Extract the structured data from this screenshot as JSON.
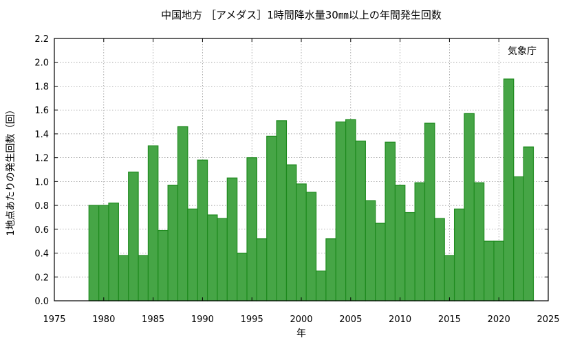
{
  "chart_data": {
    "type": "bar",
    "title": "中国地方 ［アメダス］1時間降水量30㎜以上の年間発生回数",
    "xlabel": "年",
    "ylabel": "1地点あたりの発生回数（回）",
    "annotation": "気象庁",
    "xlim": [
      1975,
      2025
    ],
    "ylim": [
      0,
      2.2
    ],
    "x_ticks": [
      1975,
      1980,
      1985,
      1990,
      1995,
      2000,
      2005,
      2010,
      2015,
      2020,
      2025
    ],
    "y_ticks": [
      "0.0",
      "0.2",
      "0.4",
      "0.6",
      "0.8",
      "1.0",
      "1.2",
      "1.4",
      "1.6",
      "1.8",
      "2.0",
      "2.2"
    ],
    "grid": true,
    "bar_color": "#46a546",
    "bar_edge_color": "#1e8a1e",
    "x": [
      1979,
      1980,
      1981,
      1982,
      1983,
      1984,
      1985,
      1986,
      1987,
      1988,
      1989,
      1990,
      1991,
      1992,
      1993,
      1994,
      1995,
      1996,
      1997,
      1998,
      1999,
      2000,
      2001,
      2002,
      2003,
      2004,
      2005,
      2006,
      2007,
      2008,
      2009,
      2010,
      2011,
      2012,
      2013,
      2014,
      2015,
      2016,
      2017,
      2018,
      2019,
      2020,
      2021,
      2022,
      2023
    ],
    "values": [
      0.8,
      0.8,
      0.82,
      0.38,
      1.08,
      0.38,
      1.3,
      0.59,
      0.97,
      1.46,
      0.77,
      1.18,
      0.72,
      0.69,
      1.03,
      0.4,
      1.2,
      0.52,
      1.38,
      1.51,
      1.14,
      0.98,
      0.91,
      0.25,
      0.52,
      1.5,
      1.52,
      1.34,
      0.84,
      0.65,
      1.33,
      0.97,
      0.74,
      0.99,
      1.49,
      0.69,
      0.38,
      0.77,
      1.57,
      0.99,
      0.5,
      0.5,
      1.86,
      1.04,
      1.29
    ]
  }
}
